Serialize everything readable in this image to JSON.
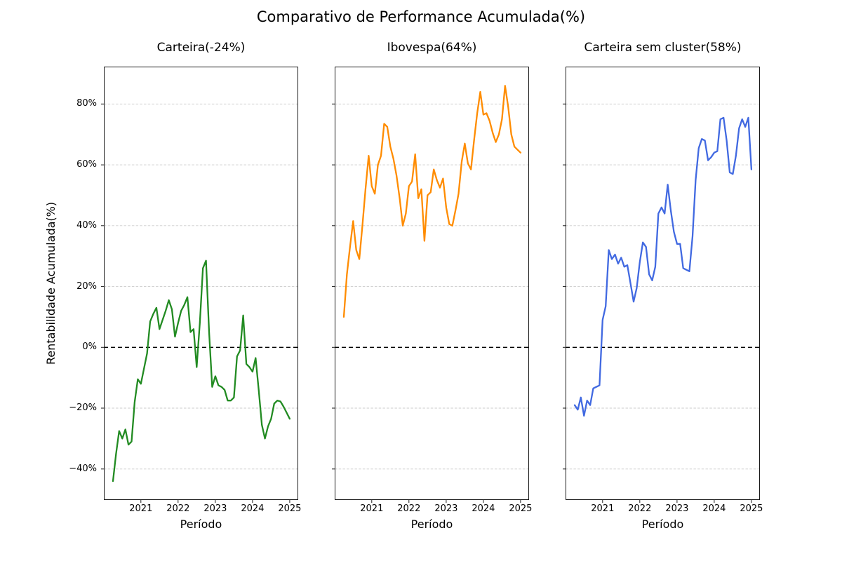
{
  "page": {
    "title": "Comparativo de Performance Acumulada(%)"
  },
  "axes": {
    "xlabel": "Período",
    "ylabel": "Rentabilidade Acumulada(%)",
    "x_tick_labels": [
      "2021",
      "2022",
      "2023",
      "2024",
      "2025"
    ],
    "y_tick_labels": [
      "80%",
      "60%",
      "40%",
      "20%",
      "0%",
      "−20%",
      "−40%"
    ],
    "y_tick_values": [
      80,
      60,
      40,
      20,
      0,
      -20,
      -40
    ],
    "ylim": [
      -50.2,
      92.3
    ],
    "grid": true,
    "zero_line_color": "#000000",
    "grid_color": "#cccccc"
  },
  "chart_data": [
    {
      "id": "carteira",
      "type": "line",
      "title": "Carteira(-24%)",
      "final_return_pct": -24,
      "color": "#228B22",
      "x_start": "2020-04",
      "x_end": "2025-01",
      "frequency": "monthly",
      "values": [
        -44,
        -35,
        -27.5,
        -30,
        -27,
        -32,
        -31,
        -18,
        -10.5,
        -12,
        -7,
        -2,
        8.5,
        11,
        13,
        6,
        9,
        12,
        15.5,
        12.5,
        3.5,
        8,
        12,
        14,
        16.5,
        5,
        6,
        -6.5,
        8,
        26,
        28.5,
        5,
        -13,
        -9.5,
        -12.5,
        -13,
        -14,
        -17.5,
        -17.5,
        -16.5,
        -3,
        -1,
        10.5,
        -5.5,
        -6.5,
        -8,
        -3.5,
        -14,
        -25.5,
        -30,
        -26,
        -23.5,
        -18.5,
        -17.5,
        -17.8,
        -19.5,
        -21.5,
        -23.5
      ]
    },
    {
      "id": "ibovespa",
      "type": "line",
      "title": "Ibovespa(64%)",
      "final_return_pct": 64,
      "color": "#FF8C00",
      "x_start": "2020-04",
      "x_end": "2025-01",
      "frequency": "monthly",
      "values": [
        10,
        24,
        33,
        41.5,
        32,
        29,
        40,
        52,
        63,
        53,
        50.5,
        60,
        63,
        73.5,
        72.5,
        66,
        62,
        56.5,
        49,
        40,
        44,
        53,
        54.5,
        63.5,
        49,
        52,
        35,
        50,
        51,
        58.5,
        55,
        52.5,
        55.5,
        46,
        40.5,
        40,
        45,
        50.5,
        61,
        67,
        60.5,
        58.5,
        68,
        77,
        84,
        76.5,
        77,
        74.5,
        70.5,
        67.5,
        70,
        75,
        86,
        79,
        70,
        66,
        65,
        64
      ]
    },
    {
      "id": "carteira-sem-cluster",
      "type": "line",
      "title": "Carteira sem cluster(58%)",
      "final_return_pct": 58,
      "color": "#4169E1",
      "x_start": "2020-04",
      "x_end": "2025-01",
      "frequency": "monthly",
      "values": [
        -19,
        -20.5,
        -16.5,
        -22.5,
        -17.5,
        -19,
        -13.5,
        -13,
        -12.5,
        9,
        13.5,
        32,
        29,
        30.5,
        27.5,
        29.5,
        26.5,
        27,
        21,
        15,
        19.5,
        28,
        34.5,
        33,
        24,
        22,
        26.5,
        44,
        46,
        44,
        53.5,
        45,
        38,
        34,
        34,
        26,
        25.5,
        25,
        36.5,
        55,
        65.5,
        68.5,
        68,
        61.5,
        62.5,
        64,
        64.5,
        75,
        75.5,
        68,
        57.5,
        57,
        63,
        72,
        75,
        72.5,
        75.5,
        58.5
      ]
    }
  ]
}
